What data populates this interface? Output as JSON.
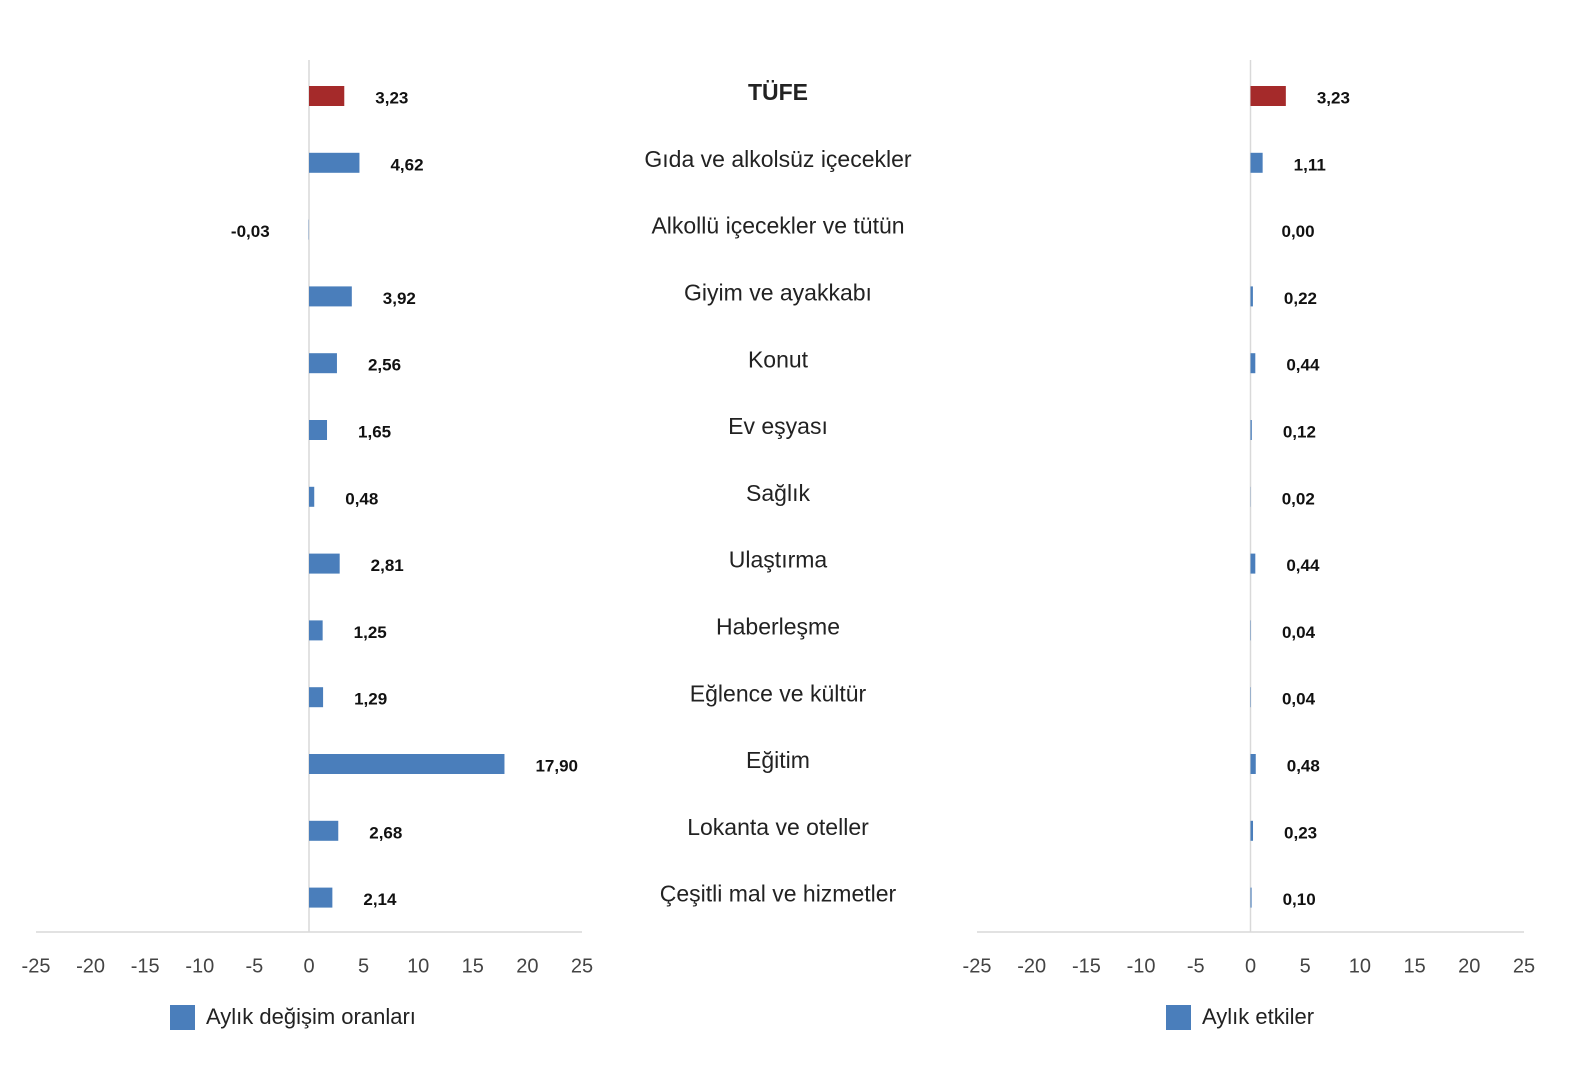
{
  "chart_data": [
    {
      "type": "bar",
      "orientation": "horizontal",
      "categories": [
        "TÜFE",
        "Gıda ve alkolsüz içecekler",
        "Alkollü içecekler ve tütün",
        "Giyim ve ayakkabı",
        "Konut",
        "Ev eşyası",
        "Sağlık",
        "Ulaştırma",
        "Haberleşme",
        "Eğlence ve kültür",
        "Eğitim",
        "Lokanta ve oteller",
        "Çeşitli mal ve hizmetler"
      ],
      "series": [
        {
          "name": "Aylık değişim oranları",
          "color": "#4a7ebb",
          "colors": [
            "#a52a2a",
            "#4a7ebb",
            "#4a7ebb",
            "#4a7ebb",
            "#4a7ebb",
            "#4a7ebb",
            "#4a7ebb",
            "#4a7ebb",
            "#4a7ebb",
            "#4a7ebb",
            "#4a7ebb",
            "#4a7ebb",
            "#4a7ebb"
          ],
          "values": [
            3.23,
            4.62,
            -0.03,
            3.92,
            2.56,
            1.65,
            0.48,
            2.81,
            1.25,
            1.29,
            17.9,
            2.68,
            2.14
          ],
          "value_labels": [
            "3,23",
            "4,62",
            "-0,03",
            "3,92",
            "2,56",
            "1,65",
            "0,48",
            "2,81",
            "1,25",
            "1,29",
            "17,90",
            "2,68",
            "2,14"
          ]
        }
      ],
      "xlim": [
        -25,
        25
      ],
      "xticks": [
        -25,
        -20,
        -15,
        -10,
        -5,
        0,
        5,
        10,
        15,
        20,
        25
      ],
      "legend": "bottom"
    },
    {
      "type": "bar",
      "orientation": "horizontal",
      "series": [
        {
          "name": "Aylık etkiler",
          "color": "#4a7ebb",
          "colors": [
            "#a52a2a",
            "#4a7ebb",
            "#4a7ebb",
            "#4a7ebb",
            "#4a7ebb",
            "#4a7ebb",
            "#4a7ebb",
            "#4a7ebb",
            "#4a7ebb",
            "#4a7ebb",
            "#4a7ebb",
            "#4a7ebb",
            "#4a7ebb"
          ],
          "values": [
            3.23,
            1.11,
            0.0,
            0.22,
            0.44,
            0.12,
            0.02,
            0.44,
            0.04,
            0.04,
            0.48,
            0.23,
            0.1
          ],
          "value_labels": [
            "3,23",
            "1,11",
            "0,00",
            "0,22",
            "0,44",
            "0,12",
            "0,02",
            "0,44",
            "0,04",
            "0,04",
            "0,48",
            "0,23",
            "0,10"
          ]
        }
      ],
      "xlim": [
        -25,
        25
      ],
      "xticks": [
        -25,
        -20,
        -15,
        -10,
        -5,
        0,
        5,
        10,
        15,
        20,
        25
      ],
      "legend": "bottom"
    }
  ]
}
